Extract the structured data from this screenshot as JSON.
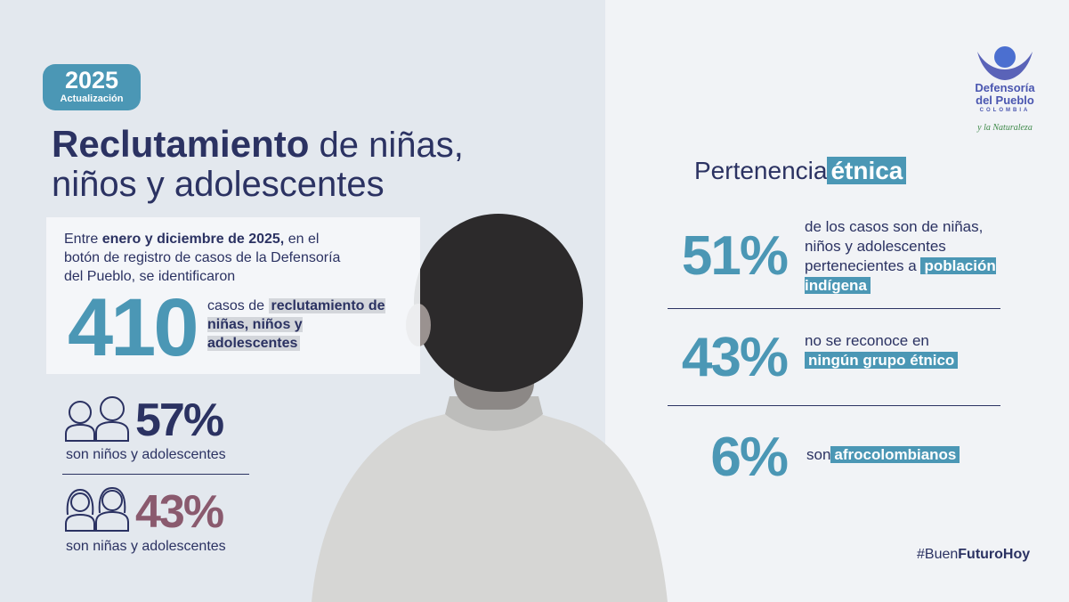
{
  "header": {
    "badge_year": "2025",
    "badge_label": "Actualización",
    "title_bold": "Reclutamiento",
    "title_line1_rest": "de niñas,",
    "title_line2": "niños y adolescentes"
  },
  "intro": {
    "lead": "Entre",
    "highlight": "enero y diciembre de 2025,",
    "rest": "en el botón de registro de casos de la Defensoría del Pueblo, se identificaron"
  },
  "total": {
    "number": "410",
    "text_plain": "casos de",
    "text_highlight": "reclutamiento de niñas, niños y adolescentes"
  },
  "gender": [
    {
      "percent": "57%",
      "label": "son niños y adolescentes"
    },
    {
      "percent": "43%",
      "label": "son niñas y adolescentes"
    }
  ],
  "ethnicity": {
    "title_plain": "Pertenencia",
    "title_highlight": "étnica",
    "items": [
      {
        "percent": "51%",
        "text": "de los casos son de niñas, niños y adolescentes pertenecientes a",
        "highlight": "población indígena"
      },
      {
        "percent": "43%",
        "text": "no se reconoce en",
        "highlight": "ningún grupo étnico"
      },
      {
        "percent": "6%",
        "text": "son",
        "highlight": "afrocolombianos"
      }
    ]
  },
  "logo": {
    "line1": "Defensoría",
    "line2": "del Pueblo",
    "country": "COLOMBIA",
    "tagline": "y la Naturaleza"
  },
  "hashtag": {
    "plain": "#Buen",
    "bold": "FuturoHoy"
  }
}
